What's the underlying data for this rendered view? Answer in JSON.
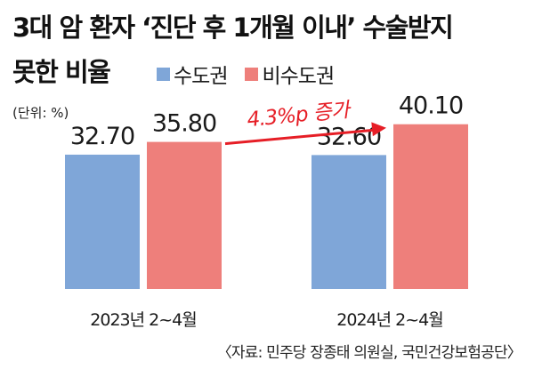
{
  "title": {
    "line1": "3대 암 환자 ‘진단 후 1개월 이내’ 수술받지",
    "line2": "못한 비율"
  },
  "unit": "(단위: %)",
  "annotation": "4.3%p 증가",
  "source": "〈자료: 민주당 장종태 의원실, 국민건강보험공단〉",
  "colors": {
    "capital": "#7fa6d8",
    "non_capital": "#ee7f7b",
    "annotation": "#e61e26"
  },
  "chart_data": {
    "type": "bar",
    "categories": [
      "2023년 2~4월",
      "2024년 2~4월"
    ],
    "series": [
      {
        "name": "수도권",
        "values": [
          32.7,
          32.6
        ]
      },
      {
        "name": "비수도권",
        "values": [
          35.8,
          40.1
        ]
      }
    ],
    "value_labels": [
      [
        "32.70",
        "32.60"
      ],
      [
        "35.80",
        "40.10"
      ]
    ],
    "legend": "top",
    "grid": false
  }
}
